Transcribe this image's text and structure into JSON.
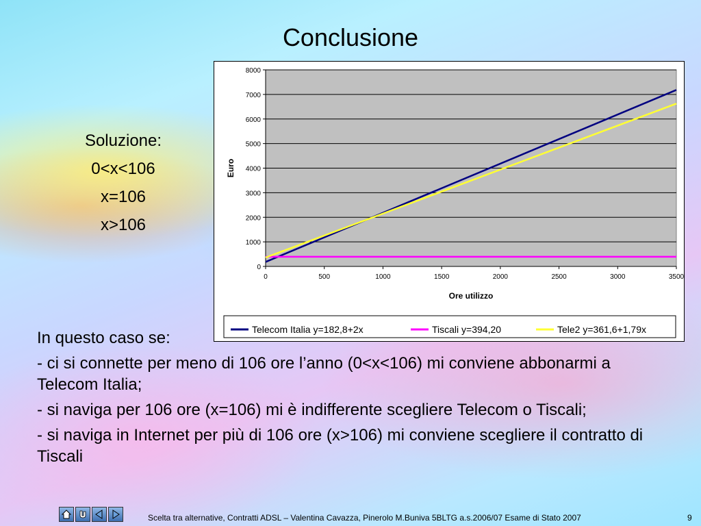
{
  "slide": {
    "title": "Conclusione",
    "solution": [
      "Soluzione:",
      "0<x<106",
      "x=106",
      "x>106"
    ],
    "body": [
      "In questo caso se:",
      "- ci si connette per meno di 106 ore l’anno (0<x<106) mi conviene abbonarmi a Telecom Italia;",
      "- si naviga per 106 ore (x=106) mi è indifferente scegliere Telecom o Tiscali;",
      "- si naviga in Internet per più di 106 ore (x>106) mi conviene scegliere il contratto di Tiscali"
    ],
    "footer": "Scelta tra alternative, Contratti ADSL – Valentina Cavazza, Pinerolo M.Buniva 5BLTG a.s.2006/07 Esame di Stato 2007",
    "page_number": "9"
  },
  "chart_data": {
    "type": "line",
    "xlabel": "Ore utilizzo",
    "ylabel": "Euro",
    "xlim": [
      0,
      3500
    ],
    "ylim": [
      0,
      8000
    ],
    "xticks": [
      0,
      500,
      1000,
      1500,
      2000,
      2500,
      3000,
      3500
    ],
    "yticks": [
      0,
      1000,
      2000,
      3000,
      4000,
      5000,
      6000,
      7000,
      8000
    ],
    "grid": true,
    "legend_position": "bottom",
    "series": [
      {
        "name": "Telecom Italia y=182,8+2x",
        "color": "#000080",
        "x": [
          0,
          3500
        ],
        "y": [
          182.8,
          7182.8
        ]
      },
      {
        "name": "Tiscali y=394,20",
        "color": "#ff00ff",
        "x": [
          0,
          3500
        ],
        "y": [
          394.2,
          394.2
        ]
      },
      {
        "name": "Tele2 y=361,6+1,79x",
        "color": "#ffff33",
        "x": [
          0,
          3500
        ],
        "y": [
          361.6,
          6626.6
        ]
      }
    ]
  }
}
